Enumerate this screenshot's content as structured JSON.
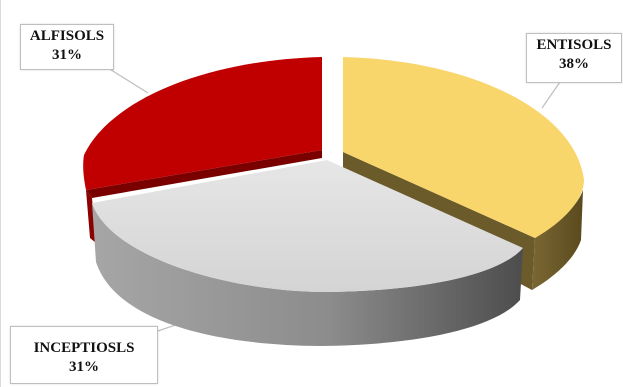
{
  "chart_data": {
    "type": "pie",
    "style": "3d-exploded",
    "title": "",
    "slices": [
      {
        "label": "ENTISOLS",
        "percent_label": "38%",
        "value": 38,
        "color": "#F9D66B",
        "side_color": "#6B5A2A"
      },
      {
        "label": "INCEPTIOSLS",
        "percent_label": "31%",
        "value": 31,
        "color": "#D9D9D9",
        "side_color": "#7F7F7F"
      },
      {
        "label": "ALFISOLS",
        "percent_label": "31%",
        "value": 31,
        "color": "#C00000",
        "side_color": "#6B0000"
      }
    ],
    "legend": "none"
  }
}
